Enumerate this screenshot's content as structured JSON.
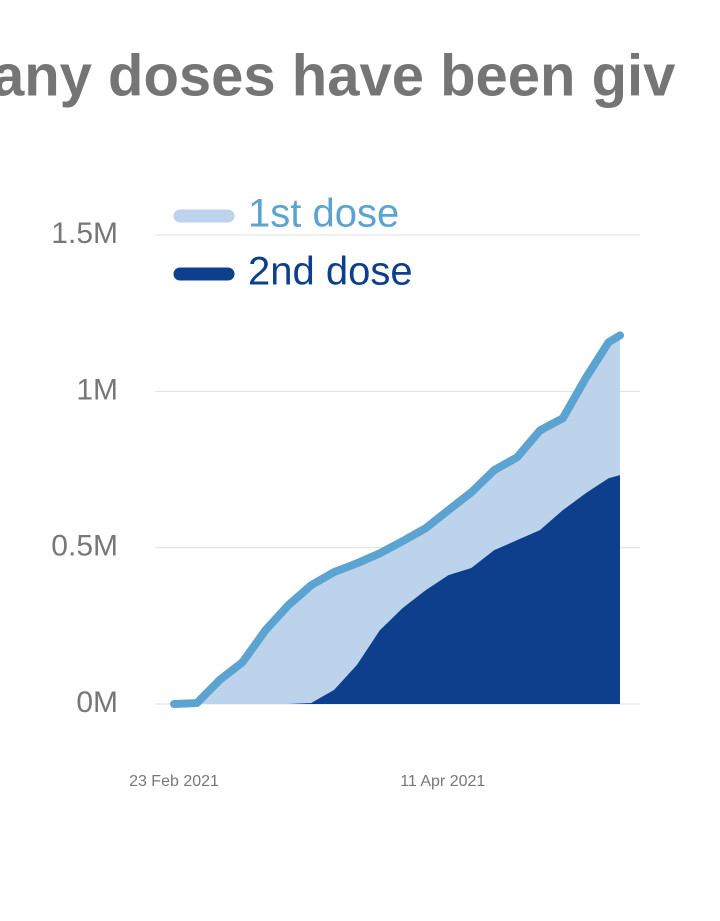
{
  "chart_data": {
    "type": "area",
    "title": "any doses have been giv",
    "x": [
      "2021-02-23",
      "2021-02-27",
      "2021-03-03",
      "2021-03-07",
      "2021-03-11",
      "2021-03-15",
      "2021-03-19",
      "2021-03-23",
      "2021-03-27",
      "2021-03-31",
      "2021-04-04",
      "2021-04-08",
      "2021-04-12",
      "2021-04-16",
      "2021-04-20",
      "2021-04-24",
      "2021-04-28",
      "2021-05-02",
      "2021-05-06",
      "2021-05-10",
      "2021-05-12"
    ],
    "series": [
      {
        "name": "1st dose",
        "color": "#bdd3ec",
        "line_color": "#5ba3d0",
        "values": [
          0,
          3000,
          77000,
          134000,
          236000,
          316000,
          380000,
          422000,
          450000,
          482000,
          521000,
          562000,
          620000,
          677000,
          748000,
          789000,
          875000,
          914000,
          1042000,
          1157000,
          1179000
        ]
      },
      {
        "name": "2nd dose",
        "color": "#0e3f8c",
        "values": [
          0,
          0,
          0,
          0,
          0,
          0,
          3000,
          45000,
          125000,
          236000,
          307000,
          364000,
          412000,
          435000,
          492000,
          524000,
          556000,
          620000,
          674000,
          722000,
          732000
        ]
      }
    ],
    "xlim": [
      "2021-02-23",
      "2021-05-12"
    ],
    "xticks": [
      {
        "value": "2021-02-23",
        "label": "23 Feb 2021"
      },
      {
        "value": "2021-04-11",
        "label": "11 Apr 2021"
      }
    ],
    "ylim": [
      0,
      1500000
    ],
    "yticks": [
      {
        "value": 0,
        "label": "0M"
      },
      {
        "value": 500000,
        "label": "0.5M"
      },
      {
        "value": 1000000,
        "label": "1M"
      },
      {
        "value": 1500000,
        "label": "1.5M"
      }
    ],
    "grid": true
  }
}
